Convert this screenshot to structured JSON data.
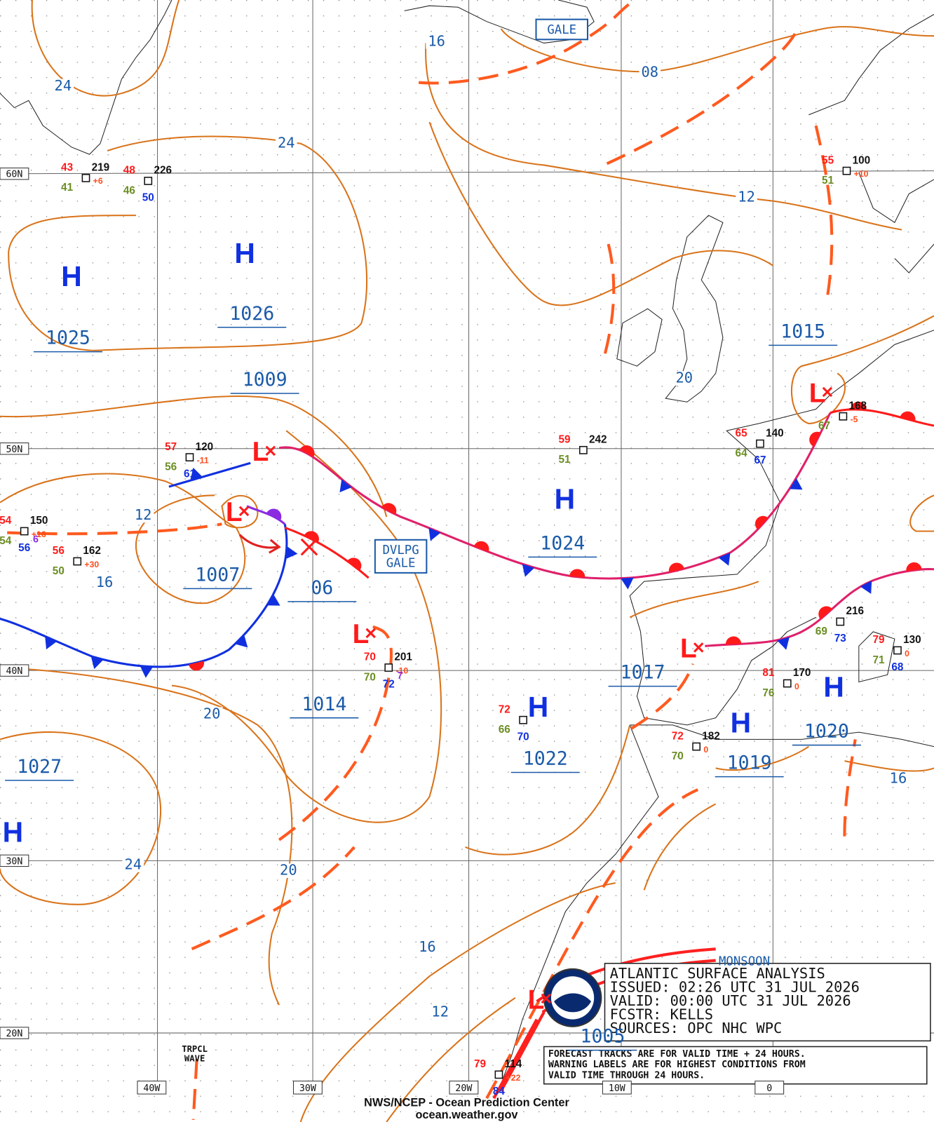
{
  "header": {
    "title": "ATLANTIC SURFACE ANALYSIS",
    "issued": "ISSUED:  02:26 UTC 31 JUL 2026",
    "valid": "VALID:  00:00 UTC 31 JUL 2026",
    "forecaster": "FCSTR:  KELLS",
    "sources": "SOURCES:  OPC NHC WPC"
  },
  "notes": [
    "FORECAST TRACKS ARE FOR VALID TIME + 24 HOURS.",
    "WARNING LABELS ARE FOR HIGHEST CONDITIONS FROM",
    "VALID TIME THROUGH 24 HOURS."
  ],
  "footer": {
    "center": "NWS/NCEP - Ocean Prediction Center",
    "site": "ocean.weather.gov"
  },
  "latitude_labels": [
    "60N",
    "50N",
    "40N",
    "30N",
    "20N"
  ],
  "longitude_labels": [
    "40W",
    "30W",
    "20W",
    "10W",
    "0"
  ],
  "warnings": [
    [
      "GALE"
    ],
    [
      "DVLPG",
      "GALE"
    ],
    [
      "MONSOON"
    ]
  ],
  "tropical_wave": [
    "TRPCL",
    "WAVE"
  ],
  "pressure_systems": [
    {
      "type": "H",
      "pressure": "1025"
    },
    {
      "type": "H",
      "pressure": "1026"
    },
    {
      "type": "L",
      "pressure": "1009"
    },
    {
      "type": "L",
      "pressure": "1007"
    },
    {
      "type": "X",
      "pressure": "06"
    },
    {
      "type": "L",
      "pressure": "1014"
    },
    {
      "type": "H",
      "pressure": "1024"
    },
    {
      "type": "H",
      "pressure": "1022"
    },
    {
      "type": "L",
      "pressure": "1015"
    },
    {
      "type": "L",
      "pressure": "1017"
    },
    {
      "type": "H",
      "pressure": "1019"
    },
    {
      "type": "H",
      "pressure": "1020"
    },
    {
      "type": "H",
      "pressure": "1027"
    },
    {
      "type": "L",
      "pressure": "1005"
    }
  ],
  "isobar_labels": [
    "24",
    "16",
    "08",
    "24",
    "12",
    "20",
    "12",
    "16",
    "20",
    "24",
    "20",
    "16",
    "12",
    "16"
  ],
  "stations": [
    {
      "temp": "43",
      "dewpoint": "41",
      "pressure": "219",
      "tendency": "+6"
    },
    {
      "temp": "48",
      "dewpoint": "46",
      "pressure": "226",
      "sst": "50"
    },
    {
      "temp": "57",
      "dewpoint": "56",
      "pressure": "120",
      "tendency": "-11",
      "sst": "61"
    },
    {
      "temp": "54",
      "dewpoint": "54",
      "pressure": "150",
      "tendency": "+16",
      "extra": "6",
      "sst": "56"
    },
    {
      "temp": "56",
      "dewpoint": "50",
      "pressure": "162",
      "tendency": "+30"
    },
    {
      "temp": "70",
      "dewpoint": "70",
      "pressure": "201",
      "tendency": "-10",
      "extra": "7",
      "sst": "72"
    },
    {
      "temp": "59",
      "dewpoint": "51",
      "pressure": "242"
    },
    {
      "temp": "65",
      "dewpoint": "64",
      "pressure": "140",
      "sst": "67"
    },
    {
      "dewpoint": "67",
      "pressure": "168",
      "tendency": "-5"
    },
    {
      "temp": "55",
      "dewpoint": "51",
      "pressure": "100",
      "tendency": "+10"
    },
    {
      "dewpoint": "69",
      "pressure": "216",
      "sst": "73"
    },
    {
      "temp": "79",
      "dewpoint": "71",
      "pressure": "130",
      "tendency": "0",
      "sst": "68"
    },
    {
      "temp": "81",
      "dewpoint": "76",
      "pressure": "170",
      "tendency": "0"
    },
    {
      "temp": "72",
      "dewpoint": "70",
      "pressure": "182",
      "tendency": "0"
    },
    {
      "temp": "72",
      "dewpoint": "66",
      "sst": "70"
    },
    {
      "temp": "79",
      "pressure": "114",
      "tendency": "+22",
      "sst": "84"
    }
  ]
}
